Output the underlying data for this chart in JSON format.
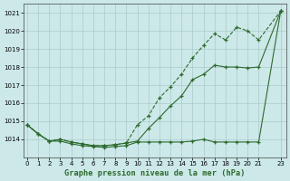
{
  "x": [
    0,
    1,
    2,
    3,
    4,
    5,
    6,
    7,
    8,
    9,
    10,
    11,
    12,
    13,
    14,
    15,
    16,
    17,
    18,
    19,
    20,
    21,
    23
  ],
  "line_top": [
    1014.8,
    1014.3,
    1013.9,
    1014.0,
    1013.85,
    1013.75,
    1013.65,
    1013.65,
    1013.7,
    1013.8,
    1014.8,
    1015.3,
    1016.3,
    1016.9,
    1017.6,
    1018.5,
    1019.2,
    1019.85,
    1019.5,
    1020.2,
    1020.0,
    1019.5,
    1021.1
  ],
  "line_mid": [
    1014.8,
    1014.3,
    1013.9,
    1014.0,
    1013.85,
    1013.75,
    1013.65,
    1013.65,
    1013.7,
    1013.8,
    1013.9,
    1014.6,
    1015.2,
    1015.85,
    1016.4,
    1017.3,
    1017.6,
    1018.1,
    1018.0,
    1018.0,
    1017.95,
    1018.0,
    1021.1
  ],
  "line_bot": [
    1014.8,
    1014.3,
    1013.9,
    1013.9,
    1013.75,
    1013.65,
    1013.6,
    1013.55,
    1013.6,
    1013.65,
    1013.85,
    1013.85,
    1013.85,
    1013.85,
    1013.85,
    1013.9,
    1014.0,
    1013.85,
    1013.85,
    1013.85,
    1013.85,
    1013.85,
    1021.1
  ],
  "bg_color": "#cce8e8",
  "grid_color": "#aacccc",
  "line_color": "#2d6a2d",
  "title": "Graphe pression niveau de la mer (hPa)",
  "ylim_min": 1013.0,
  "ylim_max": 1021.5,
  "yticks": [
    1014,
    1015,
    1016,
    1017,
    1018,
    1019,
    1020,
    1021
  ],
  "xticks": [
    0,
    1,
    2,
    3,
    4,
    5,
    6,
    7,
    8,
    9,
    10,
    11,
    12,
    13,
    14,
    15,
    16,
    17,
    18,
    19,
    20,
    21,
    23
  ],
  "xtick_labels": [
    "0",
    "1",
    "2",
    "3",
    "4",
    "5",
    "6",
    "7",
    "8",
    "9",
    "10",
    "11",
    "12",
    "13",
    "14",
    "15",
    "16",
    "17",
    "18",
    "19",
    "20",
    "21",
    "23"
  ]
}
